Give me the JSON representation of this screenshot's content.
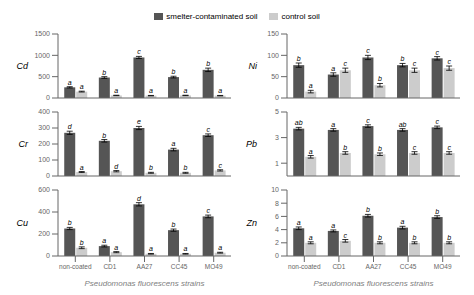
{
  "chart_data": [
    {
      "type": "bar",
      "ylabel": "Cd",
      "categories": [
        "non-coated",
        "CD1",
        "AA27",
        "CC45",
        "MO49"
      ],
      "ylim": [
        0,
        1500
      ],
      "yticks": [
        0,
        500,
        1000,
        1500
      ],
      "tick_labels": "y",
      "grid": false,
      "series": [
        {
          "name": "smelter-contaminated soil",
          "color": "#555555",
          "values": [
            250,
            480,
            950,
            490,
            660
          ],
          "errors": [
            15,
            20,
            25,
            20,
            40
          ],
          "annotations": [
            "a",
            "b",
            "c",
            "b",
            "b"
          ]
        },
        {
          "name": "control soil",
          "color": "#cccccc",
          "values": [
            150,
            60,
            55,
            60,
            55
          ],
          "errors": [
            10,
            5,
            5,
            5,
            5
          ],
          "annotations": [
            "a",
            "a",
            "a",
            "a",
            "a"
          ]
        }
      ]
    },
    {
      "type": "bar",
      "ylabel": "Cr",
      "categories": [
        "non-coated",
        "CD1",
        "AA27",
        "CC45",
        "MO49"
      ],
      "ylim": [
        0,
        400
      ],
      "yticks": [
        0,
        100,
        200,
        300,
        400
      ],
      "tick_labels": "y",
      "grid": false,
      "series": [
        {
          "name": "smelter-contaminated soil",
          "color": "#555555",
          "values": [
            270,
            220,
            300,
            165,
            255
          ],
          "errors": [
            10,
            8,
            10,
            8,
            8
          ],
          "annotations": [
            "d",
            "b",
            "e",
            "a",
            "c"
          ]
        },
        {
          "name": "control soil",
          "color": "#cccccc",
          "values": [
            25,
            30,
            20,
            20,
            35
          ],
          "errors": [
            3,
            4,
            3,
            3,
            4
          ],
          "annotations": [
            "a",
            "d",
            "b",
            "b",
            "c"
          ]
        }
      ]
    },
    {
      "type": "bar",
      "ylabel": "Cu",
      "xlabel": "Pseudomonas fluorescens strains",
      "categories": [
        "non-coated",
        "CD1",
        "AA27",
        "CC45",
        "MO49"
      ],
      "ylim": [
        0,
        600
      ],
      "yticks": [
        0,
        200,
        400,
        600
      ],
      "grid": false,
      "series": [
        {
          "name": "smelter-contaminated soil",
          "color": "#555555",
          "values": [
            250,
            90,
            470,
            235,
            360
          ],
          "errors": [
            10,
            8,
            15,
            10,
            12
          ],
          "annotations": [
            "b",
            "a",
            "d",
            "b",
            "c"
          ]
        },
        {
          "name": "control soil",
          "color": "#cccccc",
          "values": [
            75,
            35,
            20,
            20,
            30
          ],
          "errors": [
            8,
            5,
            3,
            3,
            4
          ],
          "annotations": [
            "b",
            "a",
            "a",
            "a",
            "a"
          ]
        }
      ]
    },
    {
      "type": "bar",
      "ylabel": "Ni",
      "categories": [
        "non-coated",
        "CD1",
        "AA27",
        "CC45",
        "MO49"
      ],
      "ylim": [
        0,
        150
      ],
      "yticks": [
        0,
        50,
        100,
        150
      ],
      "tick_labels": "y",
      "grid": false,
      "series": [
        {
          "name": "smelter-contaminated soil",
          "color": "#555555",
          "values": [
            77,
            55,
            95,
            77,
            93
          ],
          "errors": [
            5,
            4,
            5,
            4,
            4
          ],
          "annotations": [
            "b",
            "a",
            "c",
            "b",
            "c"
          ]
        },
        {
          "name": "control soil",
          "color": "#cccccc",
          "values": [
            15,
            65,
            30,
            65,
            70
          ],
          "errors": [
            3,
            5,
            4,
            5,
            5
          ],
          "annotations": [
            "a",
            "c",
            "b",
            "c",
            "c"
          ]
        }
      ]
    },
    {
      "type": "bar",
      "ylabel": "Pb",
      "categories": [
        "non-coated",
        "CD1",
        "AA27",
        "CC45",
        "MO49"
      ],
      "ylim": [
        0,
        5
      ],
      "yticks": [
        0,
        1,
        2,
        3,
        4,
        5
      ],
      "tick_labels": "y",
      "grid": false,
      "series": [
        {
          "name": "smelter-contaminated soil",
          "color": "#555555",
          "values": [
            3.7,
            3.6,
            3.9,
            3.6,
            3.8
          ],
          "errors": [
            0.1,
            0.1,
            0.1,
            0.1,
            0.1
          ],
          "annotations": [
            "ab",
            "a",
            "c",
            "ab",
            "c"
          ]
        },
        {
          "name": "control soil",
          "color": "#cccccc",
          "values": [
            1.5,
            1.8,
            1.7,
            1.8,
            1.8
          ],
          "errors": [
            0.1,
            0.1,
            0.1,
            0.1,
            0.1
          ],
          "annotations": [
            "a",
            "b",
            "b",
            "c",
            "c"
          ]
        }
      ]
    },
    {
      "type": "bar",
      "ylabel": "Zn",
      "xlabel": "Pseudomonas fluorescens strains",
      "categories": [
        "non-coated",
        "CD1",
        "AA27",
        "CC45",
        "MO49"
      ],
      "ylim": [
        0,
        10
      ],
      "yticks": [
        0,
        2,
        4,
        6,
        8,
        10
      ],
      "grid": false,
      "series": [
        {
          "name": "smelter-contaminated soil",
          "color": "#555555",
          "values": [
            4.2,
            3.8,
            6.1,
            4.3,
            5.9
          ],
          "errors": [
            0.2,
            0.15,
            0.2,
            0.2,
            0.2
          ],
          "annotations": [
            "a",
            "a",
            "b",
            "a",
            "b"
          ]
        },
        {
          "name": "control soil",
          "color": "#cccccc",
          "values": [
            2.0,
            2.3,
            2.0,
            2.0,
            2.0
          ],
          "errors": [
            0.15,
            0.2,
            0.15,
            0.15,
            0.15
          ],
          "annotations": [
            "a",
            "c",
            "b",
            "b",
            "b"
          ]
        }
      ]
    }
  ]
}
